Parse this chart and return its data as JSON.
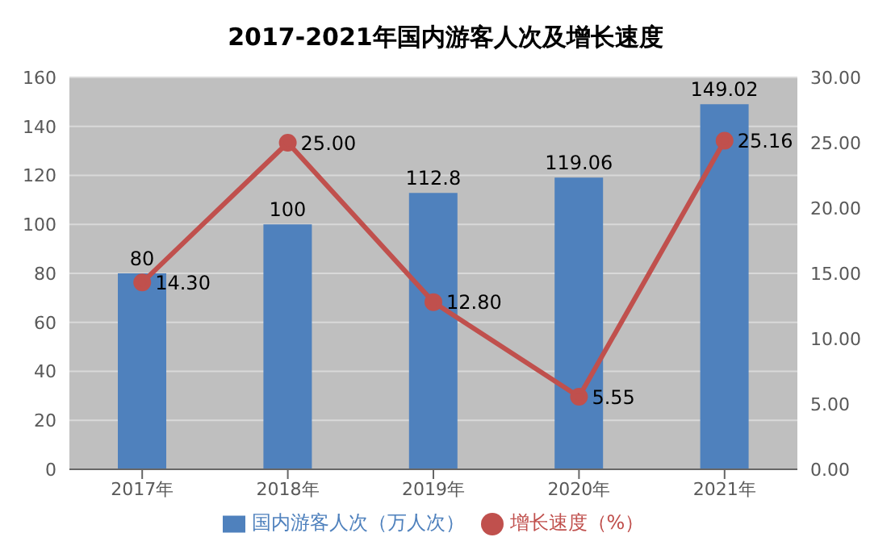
{
  "chart_data": {
    "type": "bar",
    "title": "2017-2021年国内游客人次及增长速度",
    "categories": [
      "2017年",
      "2018年",
      "2019年",
      "2020年",
      "2021年"
    ],
    "series": [
      {
        "name": "国内游客人次（万人次）",
        "color": "#4f81bd",
        "values": [
          80,
          100,
          112.8,
          119.06,
          149.02
        ],
        "value_labels": [
          "80",
          "100",
          "112.8",
          "119.06",
          "149.02"
        ]
      },
      {
        "name": "增长速度（%）",
        "type": "line",
        "axis": "y2",
        "color": "#c0504d",
        "values": [
          14.3,
          25.0,
          12.8,
          5.55,
          25.16
        ],
        "value_labels": [
          "14.30",
          "25.00",
          "12.80",
          "5.55",
          "25.16"
        ]
      }
    ],
    "ylim": [
      0,
      160
    ],
    "yticks": [
      0,
      20,
      40,
      60,
      80,
      100,
      120,
      140,
      160
    ],
    "y2lim": [
      0,
      30
    ],
    "y2ticks": [
      {
        "value": 0,
        "label": "0.00"
      },
      {
        "value": 5,
        "label": "5.00"
      },
      {
        "value": 10,
        "label": "10.00"
      },
      {
        "value": 15,
        "label": "15.00"
      },
      {
        "value": 20,
        "label": "20.00"
      },
      {
        "value": 25,
        "label": "25.00"
      },
      {
        "value": 30,
        "label": "30.00"
      }
    ],
    "grid": "y",
    "legend": "bottom",
    "marker": "circle"
  }
}
